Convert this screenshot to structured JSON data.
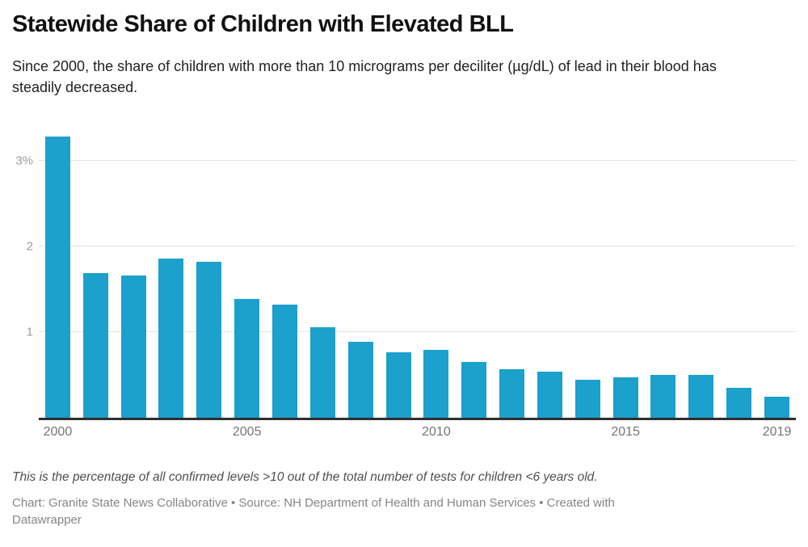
{
  "header": {
    "title": "Statewide Share of Children with Elevated BLL",
    "subtitle": "Since 2000, the share of children with more than 10 micrograms per deciliter (µg/dL) of lead in their blood has steadily decreased."
  },
  "chart_data": {
    "type": "bar",
    "title": "Statewide Share of Children with Elevated BLL",
    "categories": [
      "2000",
      "2001",
      "2002",
      "2003",
      "2004",
      "2005",
      "2006",
      "2007",
      "2008",
      "2009",
      "2010",
      "2011",
      "2012",
      "2013",
      "2014",
      "2015",
      "2016",
      "2017",
      "2018",
      "2019"
    ],
    "values": [
      3.28,
      1.69,
      1.66,
      1.86,
      1.82,
      1.39,
      1.32,
      1.06,
      0.89,
      0.77,
      0.79,
      0.65,
      0.57,
      0.54,
      0.45,
      0.47,
      0.5,
      0.5,
      0.35,
      0.25
    ],
    "unit": "%",
    "xlabel": "",
    "ylabel": "",
    "ylim": [
      0,
      3.37
    ],
    "grid": "horizontal",
    "legend_position": "none",
    "y_ticks": [
      {
        "label": "3%",
        "value": 3
      },
      {
        "label": "2",
        "value": 2
      },
      {
        "label": "1",
        "value": 1
      }
    ],
    "x_ticks": [
      {
        "label": "2000",
        "index": 0
      },
      {
        "label": "2005",
        "index": 5
      },
      {
        "label": "2010",
        "index": 10
      },
      {
        "label": "2015",
        "index": 15
      },
      {
        "label": "2019",
        "index": 19
      }
    ]
  },
  "footer": {
    "note": "This is the percentage of all confirmed levels >10 out of the total number of tests for children <6 years old.",
    "credit_lines": [
      "Chart: Granite State News Collaborative • Source: NH Department of Health and Human Services • Created with",
      "Datawrapper"
    ]
  },
  "colors": {
    "bar": "#1CA0CC",
    "gridline": "#E2E2E2",
    "axis_baseline": "#2E2E2E",
    "y_label": "#9B9B9B",
    "x_label": "#757575",
    "title": "#111111",
    "subtitle": "#222222",
    "note": "#4F4F4F",
    "credit": "#858585"
  }
}
